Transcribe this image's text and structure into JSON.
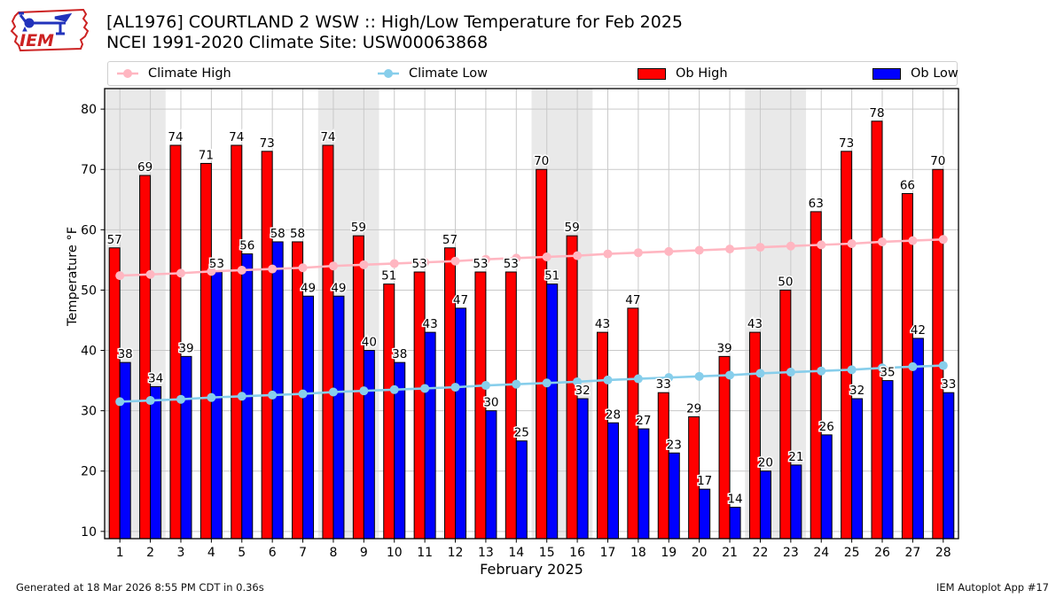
{
  "header": {
    "title_line1": "[AL1976] COURTLAND 2 WSW :: High/Low Temperature for Feb 2025",
    "title_line2": "NCEI 1991-2020 Climate Site: USW00063868"
  },
  "logo": {
    "text": "IEM"
  },
  "legend": {
    "items": [
      {
        "label": "Climate High",
        "marker": "line-dot",
        "color": "#ffb6c1"
      },
      {
        "label": "Climate Low",
        "marker": "line-dot",
        "color": "#87ceeb"
      },
      {
        "label": "Ob High",
        "marker": "patch",
        "color": "#ff0000"
      },
      {
        "label": "Ob Low",
        "marker": "patch",
        "color": "#0000ff"
      }
    ]
  },
  "chart_data": {
    "type": "bar",
    "title": "[AL1976] COURTLAND 2 WSW :: High/Low Temperature for Feb 2025",
    "subtitle": "NCEI 1991-2020 Climate Site: USW00063868",
    "xlabel": "February 2025",
    "ylabel": "Temperature °F",
    "ylim": [
      8.8,
      83.4
    ],
    "yticks": [
      10,
      20,
      30,
      40,
      50,
      60,
      70,
      80
    ],
    "grid": true,
    "legend_position": "top",
    "categories": [
      "1",
      "2",
      "3",
      "4",
      "5",
      "6",
      "7",
      "8",
      "9",
      "10",
      "11",
      "12",
      "13",
      "14",
      "15",
      "16",
      "17",
      "18",
      "19",
      "20",
      "21",
      "22",
      "23",
      "24",
      "25",
      "26",
      "27",
      "28"
    ],
    "weekend_bands": [
      [
        1,
        2
      ],
      [
        8,
        9
      ],
      [
        15,
        16
      ],
      [
        22,
        23
      ]
    ],
    "colors": {
      "band": "#e9e9e9",
      "grid": "#c9c9c9",
      "bar_edge": "#000000"
    },
    "series": [
      {
        "name": "Climate High",
        "type": "line",
        "color": "#ffb6c1",
        "values": [
          52.4,
          52.6,
          52.8,
          53.1,
          53.3,
          53.5,
          53.7,
          54.0,
          54.2,
          54.4,
          54.6,
          54.8,
          55.1,
          55.3,
          55.5,
          55.7,
          56.0,
          56.2,
          56.4,
          56.6,
          56.8,
          57.1,
          57.3,
          57.5,
          57.7,
          58.0,
          58.2,
          58.4
        ]
      },
      {
        "name": "Climate Low",
        "type": "line",
        "color": "#87ceeb",
        "values": [
          31.5,
          31.7,
          31.9,
          32.2,
          32.4,
          32.6,
          32.8,
          33.1,
          33.3,
          33.5,
          33.7,
          33.9,
          34.2,
          34.4,
          34.6,
          34.8,
          35.1,
          35.3,
          35.5,
          35.7,
          35.9,
          36.2,
          36.4,
          36.6,
          36.8,
          37.1,
          37.3,
          37.5
        ]
      },
      {
        "name": "Ob High",
        "type": "bar",
        "side": "left",
        "color": "#ff0000",
        "values": [
          57,
          69,
          74,
          71,
          74,
          73,
          58,
          74,
          59,
          51,
          53,
          57,
          53,
          53,
          70,
          59,
          43,
          47,
          33,
          29,
          39,
          43,
          50,
          63,
          73,
          78,
          66,
          70
        ]
      },
      {
        "name": "Ob Low",
        "type": "bar",
        "side": "right",
        "color": "#0000ff",
        "values": [
          38,
          34,
          39,
          53,
          56,
          58,
          49,
          49,
          40,
          38,
          43,
          47,
          30,
          25,
          51,
          32,
          28,
          27,
          23,
          17,
          14,
          20,
          21,
          26,
          32,
          35,
          42,
          33
        ]
      }
    ]
  },
  "footer": {
    "left": "Generated at 18 Mar 2026 8:55 PM CDT in 0.36s",
    "right": "IEM Autoplot App #17"
  }
}
